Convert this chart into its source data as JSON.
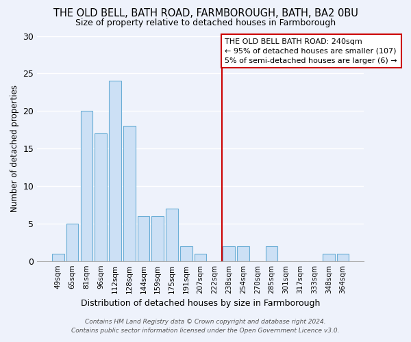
{
  "title": "THE OLD BELL, BATH ROAD, FARMBOROUGH, BATH, BA2 0BU",
  "subtitle": "Size of property relative to detached houses in Farmborough",
  "xlabel": "Distribution of detached houses by size in Farmborough",
  "ylabel": "Number of detached properties",
  "categories": [
    "49sqm",
    "65sqm",
    "81sqm",
    "96sqm",
    "112sqm",
    "128sqm",
    "144sqm",
    "159sqm",
    "175sqm",
    "191sqm",
    "207sqm",
    "222sqm",
    "238sqm",
    "254sqm",
    "270sqm",
    "285sqm",
    "301sqm",
    "317sqm",
    "333sqm",
    "348sqm",
    "364sqm"
  ],
  "values": [
    1,
    5,
    20,
    17,
    24,
    18,
    6,
    6,
    7,
    2,
    1,
    0,
    2,
    2,
    0,
    2,
    0,
    0,
    0,
    1,
    1
  ],
  "bar_color": "#cce0f5",
  "bar_edge_color": "#6baed6",
  "vline_x_index": 12,
  "vline_color": "#cc0000",
  "ylim": [
    0,
    30
  ],
  "yticks": [
    0,
    5,
    10,
    15,
    20,
    25,
    30
  ],
  "annotation_title": "THE OLD BELL BATH ROAD: 240sqm",
  "annotation_line1": "← 95% of detached houses are smaller (107)",
  "annotation_line2": "5% of semi-detached houses are larger (6) →",
  "annotation_box_color": "#ffffff",
  "annotation_box_edge_color": "#cc0000",
  "footnote1": "Contains HM Land Registry data © Crown copyright and database right 2024.",
  "footnote2": "Contains public sector information licensed under the Open Government Licence v3.0.",
  "background_color": "#eef2fb",
  "grid_color": "#ffffff"
}
